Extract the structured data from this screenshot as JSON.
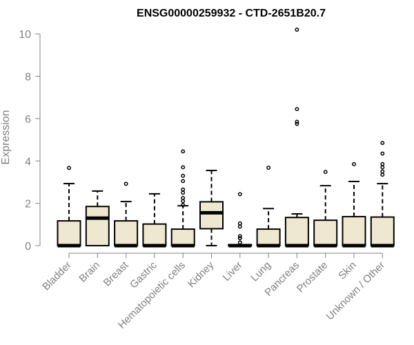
{
  "chart_data": {
    "type": "boxplot",
    "title": "ENSG00000259932 - CTD-2651B20.7",
    "xlabel": "",
    "ylabel": "Expression",
    "ylim": [
      0,
      10.2
    ],
    "yticks": [
      0,
      2,
      4,
      6,
      8,
      10
    ],
    "grid": false,
    "box_fill": "#EEE8D0",
    "box_stroke": "#000000",
    "axis_color": "#808080",
    "categories": [
      "Bladder",
      "Brain",
      "Breast",
      "Gastric",
      "Hematopoietic cells",
      "Kidney",
      "Liver",
      "Lung",
      "Pancreas",
      "Prostate",
      "Skin",
      "Unknown / Other"
    ],
    "boxes": [
      {
        "category": "Bladder",
        "min": 0,
        "q1": 0,
        "median": 0,
        "q3": 1.17,
        "max": 2.93,
        "outliers": [
          3.67
        ]
      },
      {
        "category": "Brain",
        "min": 0,
        "q1": 0,
        "median": 1.3,
        "q3": 1.85,
        "max": 2.58,
        "outliers": []
      },
      {
        "category": "Breast",
        "min": 0,
        "q1": 0,
        "median": 0,
        "q3": 1.17,
        "max": 2.08,
        "outliers": [
          2.92
        ]
      },
      {
        "category": "Gastric",
        "min": 0,
        "q1": 0,
        "median": 0,
        "q3": 1.02,
        "max": 2.45,
        "outliers": []
      },
      {
        "category": "Hematopoietic cells",
        "min": 0,
        "q1": 0,
        "median": 0,
        "q3": 0.78,
        "max": 1.88,
        "outliers": [
          1.92,
          2.1,
          2.25,
          2.5,
          2.65,
          3.05,
          3.3,
          3.7,
          4.45
        ]
      },
      {
        "category": "Kidney",
        "min": 0,
        "q1": 0.8,
        "median": 1.55,
        "q3": 2.07,
        "max": 3.55,
        "outliers": []
      },
      {
        "category": "Liver",
        "min": 0,
        "q1": 0,
        "median": 0,
        "q3": 0.05,
        "max": 0.05,
        "outliers": [
          0.15,
          0.35,
          0.45,
          0.9,
          1.05,
          2.43
        ]
      },
      {
        "category": "Lung",
        "min": 0,
        "q1": 0,
        "median": 0,
        "q3": 0.78,
        "max": 1.75,
        "outliers": [
          3.68
        ]
      },
      {
        "category": "Pancreas",
        "min": 0,
        "q1": 0,
        "median": 0,
        "q3": 1.33,
        "max": 1.5,
        "outliers": [
          5.75,
          5.85,
          6.45,
          10.2
        ]
      },
      {
        "category": "Prostate",
        "min": 0,
        "q1": 0,
        "median": 0,
        "q3": 1.2,
        "max": 2.83,
        "outliers": [
          3.48
        ]
      },
      {
        "category": "Skin",
        "min": 0,
        "q1": 0,
        "median": 0,
        "q3": 1.37,
        "max": 3.03,
        "outliers": [
          3.85
        ]
      },
      {
        "category": "Unknown / Other",
        "min": 0,
        "q1": 0,
        "median": 0,
        "q3": 1.35,
        "max": 2.93,
        "outliers": [
          3.35,
          3.5,
          3.7,
          3.85,
          4.35,
          4.85
        ]
      }
    ]
  }
}
